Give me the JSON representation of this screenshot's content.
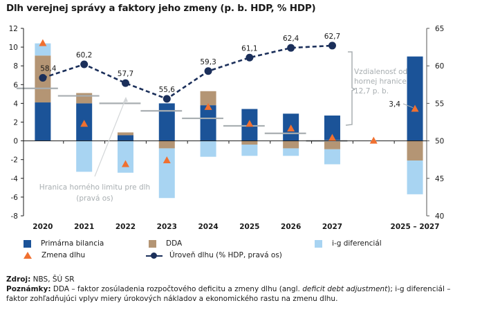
{
  "title": "Dlh verejnej správy a faktory jeho zmeny (p. b. HDP, % HDP)",
  "chart_data": {
    "type": "bar",
    "stacked": true,
    "title": "Dlh verejnej správy a faktory jeho zmeny (p. b. HDP, % HDP)",
    "categories": [
      "2020",
      "2021",
      "2022",
      "2023",
      "2024",
      "2025",
      "2026",
      "2027",
      "",
      "2025 – 2027"
    ],
    "left_axis": {
      "range": [
        -8,
        12
      ],
      "ticks": [
        -8,
        -6,
        -4,
        -2,
        0,
        2,
        4,
        6,
        8,
        10,
        12
      ],
      "labels": [
        "-8",
        "-6",
        "-4",
        "-2",
        "0",
        "2",
        "4",
        "6",
        "8",
        "10",
        "12"
      ]
    },
    "right_axis": {
      "range": [
        40,
        65
      ],
      "ticks": [
        40,
        45,
        50,
        55,
        60,
        65
      ],
      "labels": [
        "40",
        "45",
        "50",
        "55",
        "60",
        "65"
      ]
    },
    "series": [
      {
        "name": "Primárna bilancia",
        "type": "bar",
        "axis": "left",
        "color": "#1b5398",
        "values": [
          4.1,
          4.0,
          0.6,
          4.0,
          3.8,
          3.4,
          2.9,
          2.7,
          null,
          9.0
        ]
      },
      {
        "name": "DDA",
        "type": "bar",
        "axis": "left",
        "color": "#b49574",
        "values": [
          5.0,
          1.1,
          0.3,
          -0.8,
          1.5,
          -0.4,
          -0.8,
          -0.9,
          null,
          -2.1
        ]
      },
      {
        "name": "i-g diferenciál",
        "type": "bar",
        "axis": "left",
        "color": "#a8d4f2",
        "values": [
          1.3,
          -3.3,
          -3.4,
          -5.3,
          -1.7,
          -1.2,
          -0.8,
          -1.6,
          null,
          -3.6
        ]
      },
      {
        "name": "Zmena dlhu",
        "type": "marker-triangle",
        "axis": "left",
        "color": "#f07030",
        "values": [
          10.4,
          1.8,
          -2.5,
          -2.1,
          3.6,
          1.8,
          1.3,
          0.3,
          0.0,
          3.4
        ]
      },
      {
        "name": "Úroveň dlhu (% HDP, pravá os)",
        "type": "line-dashed",
        "axis": "right",
        "color": "#1b2f5a",
        "values": [
          58.4,
          60.2,
          57.7,
          55.6,
          59.3,
          61.1,
          62.4,
          62.7,
          null,
          null
        ],
        "labels": [
          "58,4",
          "60,2",
          "57,7",
          "55,6",
          "59,3",
          "61,1",
          "62,4",
          "62,7"
        ]
      },
      {
        "name": "Hranica horného limitu pre dlh (pravá os)",
        "type": "step-segments",
        "axis": "right",
        "color": "#a8aeb1",
        "values": [
          57,
          56,
          55,
          54,
          53,
          52,
          51,
          50,
          null,
          null
        ]
      }
    ],
    "annotations": {
      "limit_label": [
        "Hranica horného limitu pre dlh",
        "(pravá os)"
      ],
      "distance_label": [
        "Vzdialenosť od",
        "hornej hranice",
        "12,7 p. b."
      ],
      "cumulative_change_label": "3,4"
    },
    "legend": {
      "placement": "bottom",
      "items": [
        {
          "label": "Primárna bilancia",
          "icon": "square",
          "color": "#1b5398"
        },
        {
          "label": "DDA",
          "icon": "square",
          "color": "#b49574"
        },
        {
          "label": "i-g diferenciál",
          "icon": "square",
          "color": "#a8d4f2"
        },
        {
          "label": "Zmena dlhu",
          "icon": "triangle",
          "color": "#f07030"
        },
        {
          "label": "Úroveň dlhu (% HDP, pravá os)",
          "icon": "line-dot",
          "color": "#1b2f5a"
        }
      ]
    },
    "grid": false
  },
  "footer": {
    "source_label": "Zdroj:",
    "source_text": " NBS, ŠÚ SR",
    "notes_label": "Poznámky:",
    "notes_text_1": " DDA – faktor zosúladenia rozpočtového deficitu a zmeny dlhu (angl. ",
    "notes_italic": "deficit debt adjustment",
    "notes_text_2": "); i-g diferenciál –",
    "notes_text_3": "faktor zohľadňujúci vplyv miery úrokových nákladov a ekonomického rastu na zmenu dlhu."
  }
}
